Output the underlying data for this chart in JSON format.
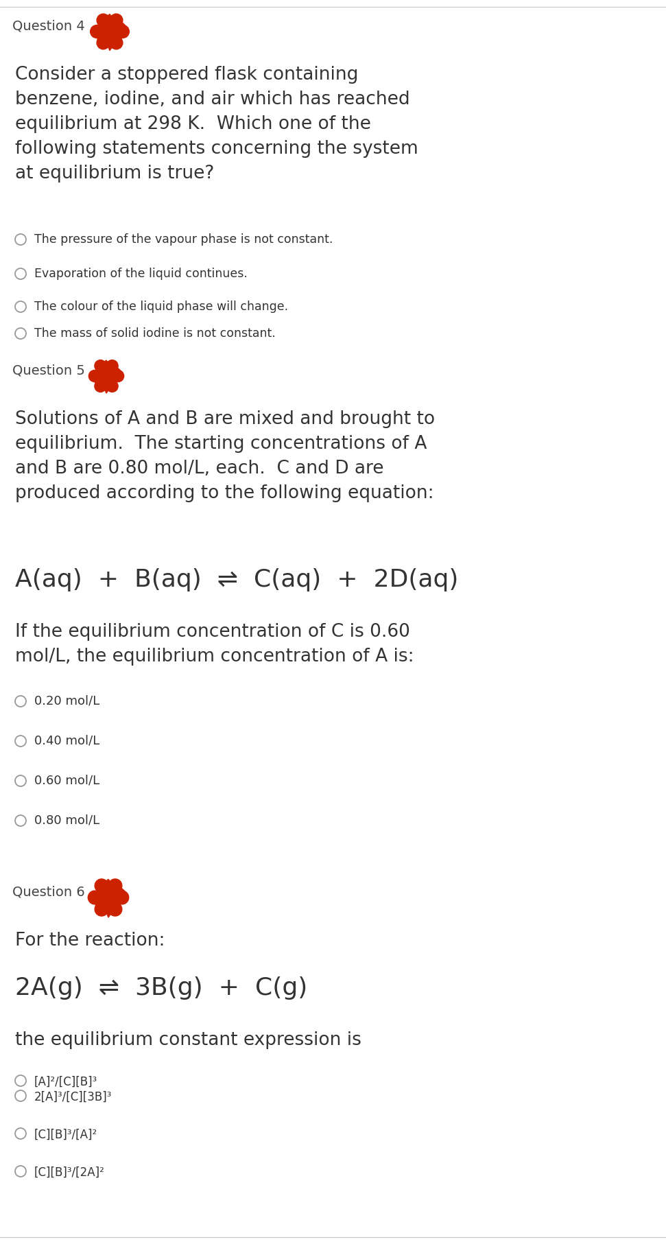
{
  "bg_color": "#ffffff",
  "text_color": "#333333",
  "radio_color": "#999999",
  "divider_color": "#cccccc",
  "question_label_color": "#444444",
  "blob_color": "#cc2200",
  "q4": {
    "label": "Question 4",
    "body": "Consider a stoppered flask containing\nbenzene, iodine, and air which has reached\nequilibrium at 298 K.  Which one of the\nfollowing statements concerning the system\nat equilibrium is true?",
    "options": [
      "The pressure of the vapour phase is not constant.",
      "Evaporation of the liquid continues.",
      "The colour of the liquid phase will change.",
      "The mass of solid iodine is not constant."
    ]
  },
  "q5": {
    "label": "Question 5",
    "body": "Solutions of A and B are mixed and brought to\nequilibrium.  The starting concentrations of A\nand B are 0.80 mol/L, each.  C and D are\nproduced according to the following equation:",
    "equation": "A(aq)  +  B(aq)  ⇌  C(aq)  +  2D(aq)",
    "body2": "If the equilibrium concentration of C is 0.60\nmol/L, the equilibrium concentration of A is:",
    "options": [
      "0.20 mol/L",
      "0.40 mol/L",
      "0.60 mol/L",
      "0.80 mol/L"
    ]
  },
  "q6": {
    "label": "Question 6",
    "body1": "For the reaction:",
    "equation": "2A(g)  ⇌  3B(g)  +  C(g)",
    "body2": "the equilibrium constant expression is",
    "options": [
      "[A]²/[C][B]³",
      "2[A]³/[C][3B]³",
      "[C][B]³/[A]²",
      "[C][B]³/[2A]²"
    ]
  }
}
